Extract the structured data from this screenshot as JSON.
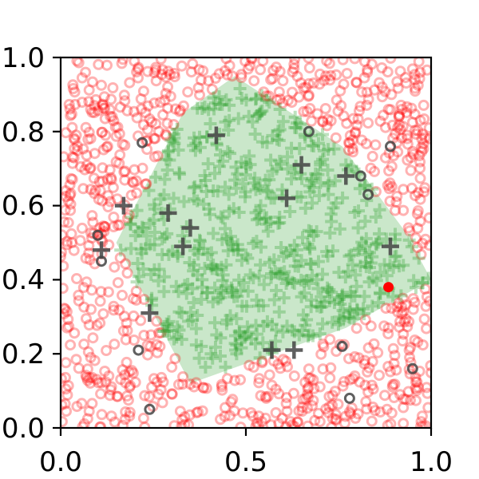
{
  "chart_data": {
    "type": "scatter",
    "title": "",
    "xlabel": "",
    "ylabel": "",
    "xlim": [
      0.0,
      1.0
    ],
    "ylim": [
      0.0,
      1.0
    ],
    "grid": false,
    "xticks": [
      "0.0",
      "0.5",
      "1.0"
    ],
    "yticks": [
      "0.0",
      "0.2",
      "0.4",
      "0.6",
      "0.8",
      "1.0"
    ],
    "region": {
      "color": "#2ca02c",
      "polygon": [
        [
          0.47,
          0.95
        ],
        [
          0.76,
          0.76
        ],
        [
          0.93,
          0.53
        ],
        [
          1.0,
          0.4
        ],
        [
          0.77,
          0.27
        ],
        [
          0.35,
          0.12
        ],
        [
          0.15,
          0.5
        ],
        [
          0.33,
          0.85
        ]
      ]
    },
    "series": [
      {
        "marker": "circle",
        "color": "#ff0000",
        "alpha": 0.3,
        "points": []
      },
      {
        "marker": "plus",
        "color": "#2ca02c",
        "alpha": 0.3,
        "points": []
      },
      {
        "marker": "plus",
        "color": "#444444",
        "alpha": 0.85,
        "points": [
          [
            0.42,
            0.79
          ],
          [
            0.65,
            0.71
          ],
          [
            0.77,
            0.68
          ],
          [
            0.61,
            0.62
          ],
          [
            0.17,
            0.6
          ],
          [
            0.29,
            0.58
          ],
          [
            0.35,
            0.54
          ],
          [
            0.33,
            0.49
          ],
          [
            0.11,
            0.48
          ],
          [
            0.89,
            0.49
          ],
          [
            0.24,
            0.31
          ],
          [
            0.57,
            0.21
          ],
          [
            0.63,
            0.21
          ]
        ]
      },
      {
        "marker": "circle",
        "color": "#444444",
        "alpha": 0.85,
        "points": [
          [
            0.67,
            0.8
          ],
          [
            0.22,
            0.77
          ],
          [
            0.89,
            0.76
          ],
          [
            0.81,
            0.68
          ],
          [
            0.83,
            0.63
          ],
          [
            0.1,
            0.52
          ],
          [
            0.11,
            0.45
          ],
          [
            0.76,
            0.22
          ],
          [
            0.21,
            0.21
          ],
          [
            0.95,
            0.16
          ],
          [
            0.78,
            0.08
          ],
          [
            0.24,
            0.05
          ]
        ]
      },
      {
        "marker": "circle",
        "color": "#ff0000",
        "alpha": 1.0,
        "points": [
          [
            0.885,
            0.38
          ]
        ]
      }
    ]
  }
}
